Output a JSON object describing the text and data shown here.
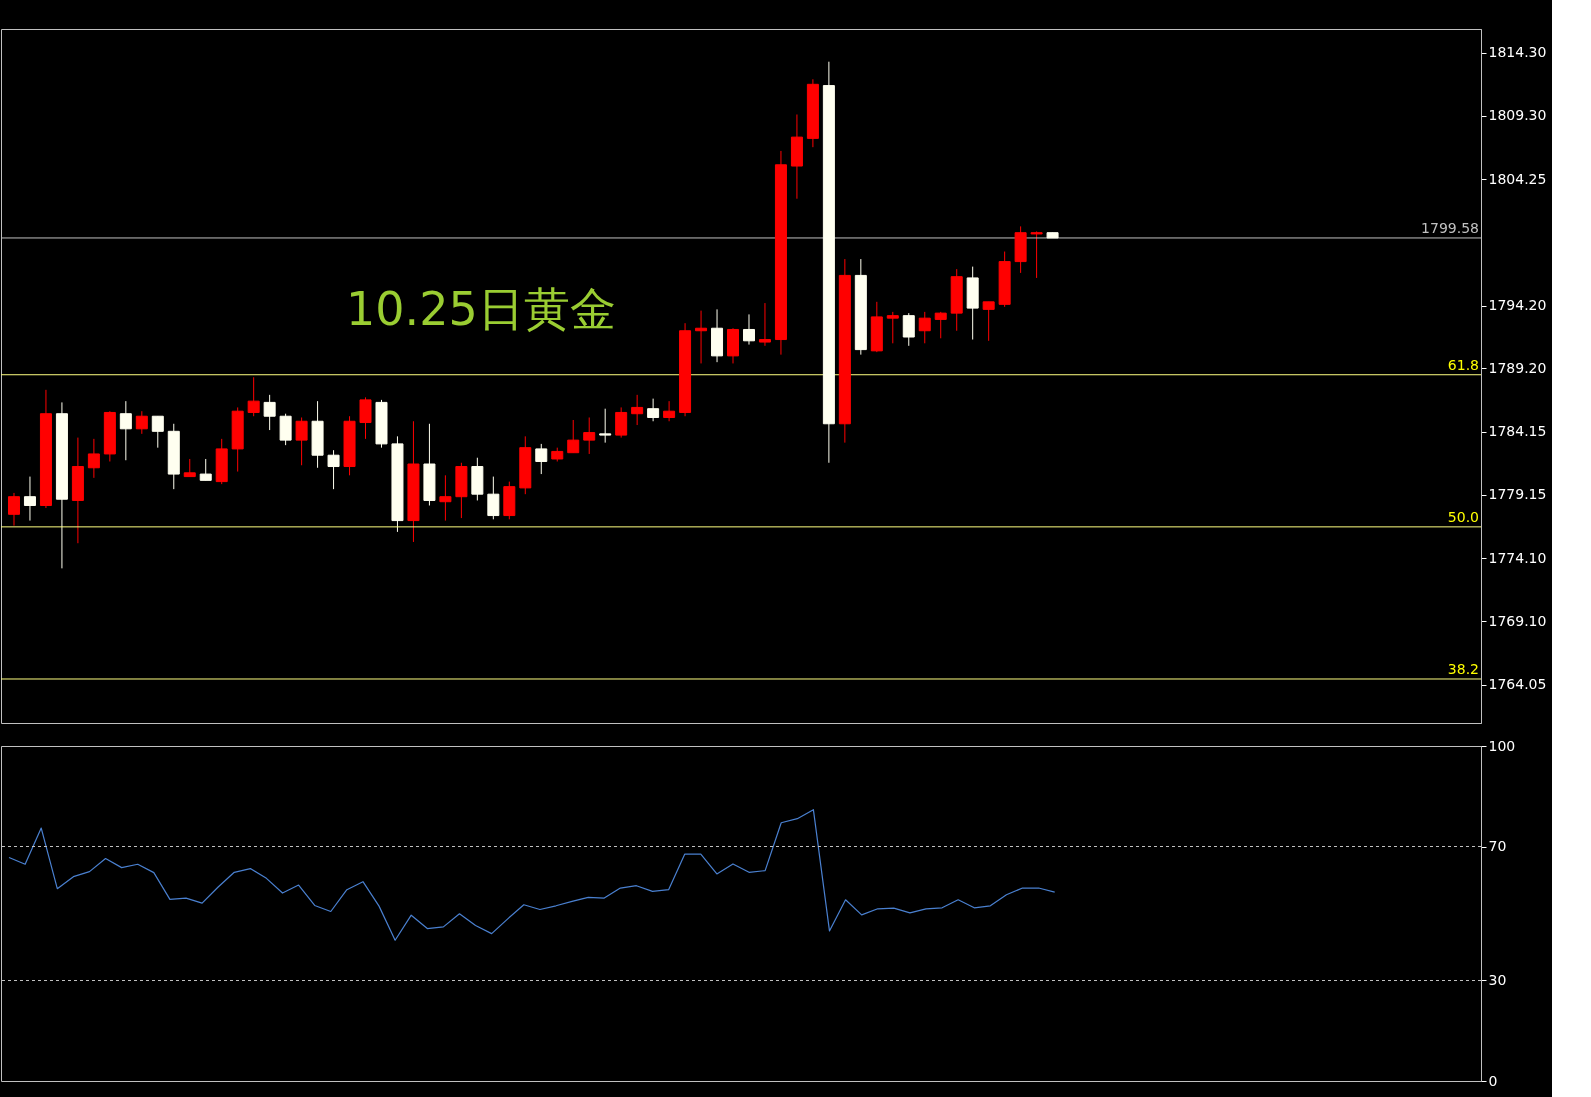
{
  "chart_data": [
    {
      "type": "candlestick",
      "title": "10.25日黄金",
      "categories": [
        null,
        null,
        null,
        null,
        null,
        null,
        null,
        null,
        null,
        null,
        null,
        null,
        null,
        null,
        null,
        null,
        null,
        null,
        null,
        null,
        null,
        null,
        null,
        null,
        null,
        null,
        null,
        null,
        null,
        null,
        null,
        null,
        null,
        null,
        null,
        null,
        null,
        null,
        null,
        null,
        null,
        null,
        null,
        null,
        null,
        null,
        null,
        null,
        null,
        null,
        null,
        null,
        null,
        null,
        null,
        null,
        null,
        null,
        null,
        null,
        null,
        null,
        null,
        null,
        null,
        null,
        null,
        null,
        null,
        null,
        null,
        null,
        null,
        null,
        null,
        null,
        null,
        null,
        null,
        null,
        null,
        null,
        null,
        null,
        null,
        null,
        null,
        null,
        null,
        null,
        null,
        null
      ],
      "ohlc": [
        [
          1777.6,
          1779.3,
          1776.7,
          1779.0
        ],
        [
          1779.0,
          1780.6,
          1777.1,
          1778.3
        ],
        [
          1778.3,
          1787.5,
          1778.1,
          1785.6
        ],
        [
          1785.6,
          1786.5,
          1773.3,
          1778.8
        ],
        [
          1778.7,
          1783.7,
          1775.3,
          1781.4
        ],
        [
          1781.3,
          1783.6,
          1780.5,
          1782.4
        ],
        [
          1782.4,
          1785.8,
          1781.8,
          1785.7
        ],
        [
          1785.6,
          1786.6,
          1781.9,
          1784.4
        ],
        [
          1784.4,
          1785.8,
          1784.0,
          1785.4
        ],
        [
          1785.4,
          1785.4,
          1782.9,
          1784.2
        ],
        [
          1784.2,
          1784.8,
          1779.6,
          1780.8
        ],
        [
          1780.6,
          1782.0,
          1780.6,
          1780.9
        ],
        [
          1780.8,
          1782.0,
          1780.3,
          1780.3
        ],
        [
          1780.2,
          1783.6,
          1780.0,
          1782.8
        ],
        [
          1782.8,
          1786.1,
          1781.0,
          1785.8
        ],
        [
          1785.7,
          1788.5,
          1785.4,
          1786.6
        ],
        [
          1786.5,
          1787.1,
          1784.3,
          1785.4
        ],
        [
          1785.4,
          1785.6,
          1783.1,
          1783.5
        ],
        [
          1783.5,
          1785.3,
          1781.5,
          1785.0
        ],
        [
          1785.0,
          1786.6,
          1781.3,
          1782.3
        ],
        [
          1782.3,
          1782.7,
          1779.6,
          1781.4
        ],
        [
          1781.4,
          1785.4,
          1780.7,
          1785.0
        ],
        [
          1784.9,
          1786.9,
          1783.6,
          1786.7
        ],
        [
          1786.5,
          1786.7,
          1782.9,
          1783.2
        ],
        [
          1783.2,
          1783.8,
          1776.2,
          1777.1
        ],
        [
          1777.1,
          1785.0,
          1775.4,
          1781.6
        ],
        [
          1781.6,
          1784.8,
          1778.3,
          1778.7
        ],
        [
          1778.6,
          1780.7,
          1777.1,
          1779.0
        ],
        [
          1779.0,
          1781.7,
          1777.3,
          1781.4
        ],
        [
          1781.4,
          1782.1,
          1778.7,
          1779.2
        ],
        [
          1779.2,
          1780.6,
          1777.2,
          1777.5
        ],
        [
          1777.5,
          1780.2,
          1777.2,
          1779.8
        ],
        [
          1779.7,
          1783.8,
          1779.2,
          1782.9
        ],
        [
          1782.8,
          1783.2,
          1780.8,
          1781.8
        ],
        [
          1782.0,
          1782.9,
          1781.8,
          1782.6
        ],
        [
          1782.5,
          1785.1,
          1782.5,
          1783.5
        ],
        [
          1783.5,
          1785.3,
          1782.4,
          1784.1
        ],
        [
          1784.0,
          1786.0,
          1783.3,
          1783.9
        ],
        [
          1783.9,
          1786.1,
          1783.7,
          1785.7
        ],
        [
          1785.6,
          1787.1,
          1784.7,
          1786.1
        ],
        [
          1786.0,
          1786.8,
          1785.0,
          1785.3
        ],
        [
          1785.3,
          1786.6,
          1785.0,
          1785.8
        ],
        [
          1785.7,
          1792.8,
          1785.4,
          1792.2
        ],
        [
          1792.2,
          1793.8,
          1789.6,
          1792.4
        ],
        [
          1792.4,
          1793.9,
          1789.7,
          1790.2
        ],
        [
          1790.2,
          1792.4,
          1789.6,
          1792.3
        ],
        [
          1792.3,
          1793.5,
          1791.1,
          1791.4
        ],
        [
          1791.3,
          1794.4,
          1791.0,
          1791.5
        ],
        [
          1791.5,
          1806.5,
          1790.3,
          1805.4
        ],
        [
          1805.3,
          1809.4,
          1802.7,
          1807.6
        ],
        [
          1807.5,
          1812.2,
          1806.8,
          1811.8
        ],
        [
          1811.7,
          1813.6,
          1781.7,
          1784.8
        ],
        [
          1784.8,
          1797.9,
          1783.3,
          1796.6
        ],
        [
          1796.6,
          1797.9,
          1790.3,
          1790.7
        ],
        [
          1790.6,
          1794.5,
          1790.5,
          1793.3
        ],
        [
          1793.2,
          1793.7,
          1791.2,
          1793.4
        ],
        [
          1793.4,
          1793.6,
          1791.0,
          1791.7
        ],
        [
          1792.2,
          1793.7,
          1791.2,
          1793.2
        ],
        [
          1793.1,
          1793.7,
          1791.6,
          1793.6
        ],
        [
          1793.6,
          1797.1,
          1792.2,
          1796.5
        ],
        [
          1796.4,
          1797.3,
          1791.5,
          1794.0
        ],
        [
          1793.9,
          1794.5,
          1791.4,
          1794.5
        ],
        [
          1794.3,
          1798.5,
          1794.1,
          1797.7
        ],
        [
          1797.7,
          1800.5,
          1796.8,
          1800.0
        ],
        [
          1799.9,
          1800.1,
          1796.4,
          1800.0
        ],
        [
          1800.0,
          1800.0,
          1799.58,
          1799.58
        ],
        null,
        null,
        null,
        null,
        null,
        null,
        null,
        null,
        null,
        null,
        null,
        null,
        null,
        null,
        null,
        null,
        null,
        null,
        null,
        null,
        null,
        null,
        null,
        null,
        null,
        null
      ],
      "colors": [
        "#ff0000",
        "#fffff0",
        "#ff0000",
        "#fffff0",
        "#ff0000",
        "#ff0000",
        "#ff0000",
        "#fffff0",
        "#ff0000",
        "#fffff0",
        "#fffff0",
        "#ff0000",
        "#fffff0",
        "#ff0000",
        "#ff0000",
        "#ff0000",
        "#fffff0",
        "#fffff0",
        "#ff0000",
        "#fffff0",
        "#fffff0",
        "#ff0000",
        "#ff0000",
        "#fffff0",
        "#fffff0",
        "#ff0000",
        "#fffff0",
        "#ff0000",
        "#ff0000",
        "#fffff0",
        "#fffff0",
        "#ff0000",
        "#ff0000",
        "#fffff0",
        "#ff0000",
        "#ff0000",
        "#ff0000",
        "#fffff0",
        "#ff0000",
        "#ff0000",
        "#fffff0",
        "#ff0000",
        "#ff0000",
        "#ff0000",
        "#fffff0",
        "#ff0000",
        "#fffff0",
        "#ff0000",
        "#ff0000",
        "#ff0000",
        "#ff0000",
        "#fffff0",
        "#ff0000",
        "#fffff0",
        "#ff0000",
        "#ff0000",
        "#fffff0",
        "#ff0000",
        "#ff0000",
        "#ff0000",
        "#fffff0",
        "#ff0000",
        "#ff0000",
        "#ff0000",
        "#ff0000",
        "#fffff0",
        null,
        null,
        null,
        null,
        null,
        null,
        null,
        null,
        null,
        null,
        null,
        null,
        null,
        null,
        null,
        null,
        null,
        null,
        null,
        null,
        null,
        null,
        null,
        null,
        null,
        null
      ],
      "ylim": [
        1761.0,
        1816.2
      ],
      "yticks": [
        {
          "value": 1814.3,
          "label": "1814.30"
        },
        {
          "value": 1809.3,
          "label": "1809.30"
        },
        {
          "value": 1804.25,
          "label": "1804.25"
        },
        {
          "value": 1794.2,
          "label": "1794.20"
        },
        {
          "value": 1789.2,
          "label": "1789.20"
        },
        {
          "value": 1784.15,
          "label": "1784.15"
        },
        {
          "value": 1779.15,
          "label": "1779.15"
        },
        {
          "value": 1774.1,
          "label": "1774.10"
        },
        {
          "value": 1769.1,
          "label": "1769.10"
        },
        {
          "value": 1764.05,
          "label": "1764.05"
        }
      ],
      "ref_lines": [
        {
          "axis": "y",
          "value": 1799.58,
          "label": "1799.58",
          "color": "#c0c0c0",
          "line_style": "solid"
        },
        {
          "axis": "y",
          "value": 1788.7,
          "color": "#ffff80",
          "line_style": "solid"
        },
        {
          "axis": "y",
          "value": 1776.6,
          "color": "#ffff80",
          "line_style": "solid"
        },
        {
          "axis": "y",
          "value": 1764.5,
          "color": "#ffff80",
          "line_style": "solid"
        }
      ],
      "annotations": [
        {
          "text": "61.8",
          "y": 1788.7
        },
        {
          "text": "50.0",
          "y": 1776.6
        },
        {
          "text": "38.2",
          "y": 1764.5
        }
      ],
      "tick_labels": "y"
    },
    {
      "type": "line",
      "categories": [
        null,
        null,
        null,
        null,
        null,
        null,
        null,
        null,
        null,
        null,
        null,
        null,
        null,
        null,
        null,
        null,
        null,
        null,
        null,
        null,
        null,
        null,
        null,
        null,
        null,
        null,
        null,
        null,
        null,
        null,
        null,
        null,
        null,
        null,
        null,
        null,
        null,
        null,
        null,
        null,
        null,
        null,
        null,
        null,
        null,
        null,
        null,
        null,
        null,
        null,
        null,
        null,
        null,
        null,
        null,
        null,
        null,
        null,
        null,
        null,
        null,
        null,
        null,
        null,
        null,
        null,
        null,
        null,
        null,
        null,
        null,
        null,
        null,
        null,
        null,
        null,
        null,
        null,
        null,
        null,
        null,
        null,
        null,
        null,
        null,
        null,
        null,
        null,
        null,
        null,
        null,
        null
      ],
      "series": [
        {
          "color": "#4a80d0",
          "values": [
            66.7,
            64.7,
            75.5,
            57.4,
            61.0,
            62.5,
            66.4,
            63.7,
            64.7,
            62.2,
            54.2,
            54.6,
            53.1,
            57.9,
            62.3,
            63.4,
            60.5,
            56.1,
            58.5,
            52.4,
            50.6,
            57.1,
            59.5,
            52.2,
            42.0,
            49.5,
            45.5,
            46.0,
            49.9,
            46.4,
            44.0,
            48.4,
            52.6,
            51.2,
            52.3,
            53.6,
            54.8,
            54.6,
            57.6,
            58.3,
            56.6,
            57.1,
            67.7,
            67.7,
            61.8,
            64.8,
            62.3,
            62.8,
            77.1,
            78.3,
            81.0,
            44.8,
            54.1,
            49.6,
            51.4,
            51.6,
            50.2,
            51.4,
            51.7,
            54.1,
            51.7,
            52.3,
            55.6,
            57.6,
            57.6,
            56.4,
            null,
            null,
            null,
            null,
            null,
            null,
            null,
            null,
            null,
            null,
            null,
            null,
            null,
            null,
            null,
            null,
            null,
            null,
            null,
            null,
            null,
            null,
            null,
            null,
            null,
            null
          ]
        }
      ],
      "ylim": [
        0,
        100
      ],
      "yticks": [
        0,
        30,
        70,
        100
      ],
      "ref_lines": [
        {
          "axis": "y",
          "value": 70,
          "color": "#c0c0c0",
          "line_style": "dashed"
        },
        {
          "axis": "y",
          "value": 30,
          "color": "#c0c0c0",
          "line_style": "dashed"
        }
      ],
      "tick_labels": "y"
    }
  ]
}
